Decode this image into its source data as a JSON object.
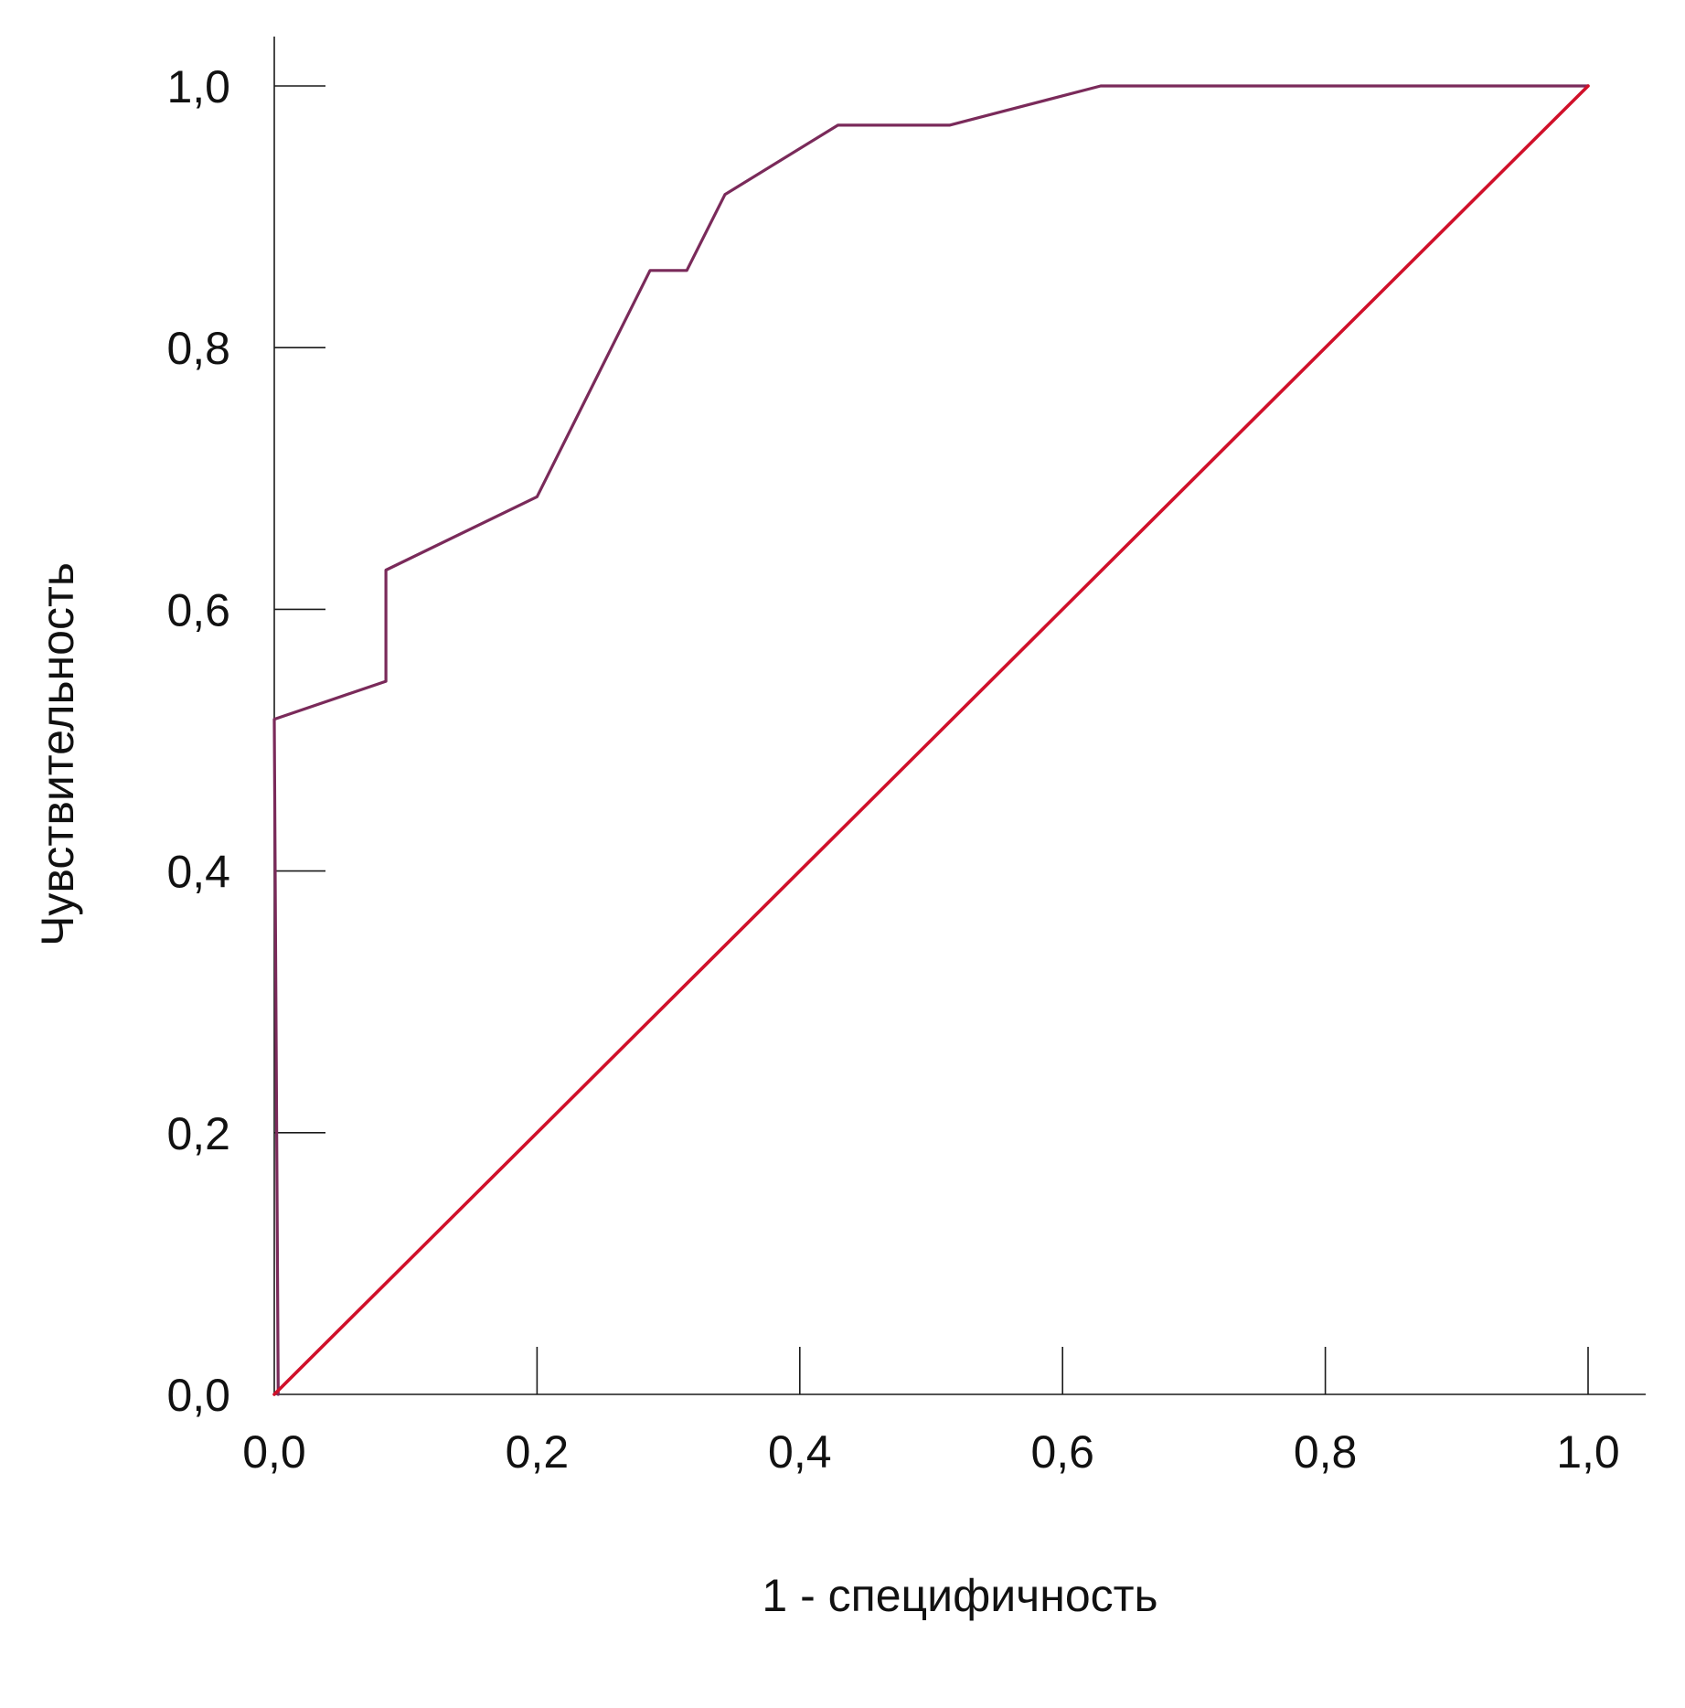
{
  "chart_data": {
    "type": "line",
    "title": "",
    "xlabel": "1 - специфичность",
    "ylabel": "Чувствительность",
    "xlim": [
      0,
      1
    ],
    "ylim": [
      0,
      1
    ],
    "x_ticks": [
      0,
      0.2,
      0.4,
      0.6,
      0.8,
      1.0
    ],
    "y_ticks": [
      0,
      0.2,
      0.4,
      0.6,
      0.8,
      1.0
    ],
    "x_tick_labels": [
      "0,0",
      "0,2",
      "0,4",
      "0,6",
      "0,8",
      "1,0"
    ],
    "y_tick_labels": [
      "0,0",
      "0,2",
      "0,4",
      "0,6",
      "0,8",
      "1,0"
    ],
    "grid": false,
    "series": [
      {
        "color": "#7a2a5a",
        "x": [
          0.003,
          0.0,
          0.085,
          0.085,
          0.2,
          0.286,
          0.314,
          0.343,
          0.429,
          0.514,
          0.629,
          1.0
        ],
        "y": [
          0.0,
          0.516,
          0.545,
          0.63,
          0.686,
          0.859,
          0.859,
          0.917,
          0.97,
          0.97,
          1.0,
          1.0
        ]
      },
      {
        "color": "#d0102a",
        "x": [
          0.0,
          1.0
        ],
        "y": [
          0.0,
          1.0
        ]
      }
    ]
  }
}
